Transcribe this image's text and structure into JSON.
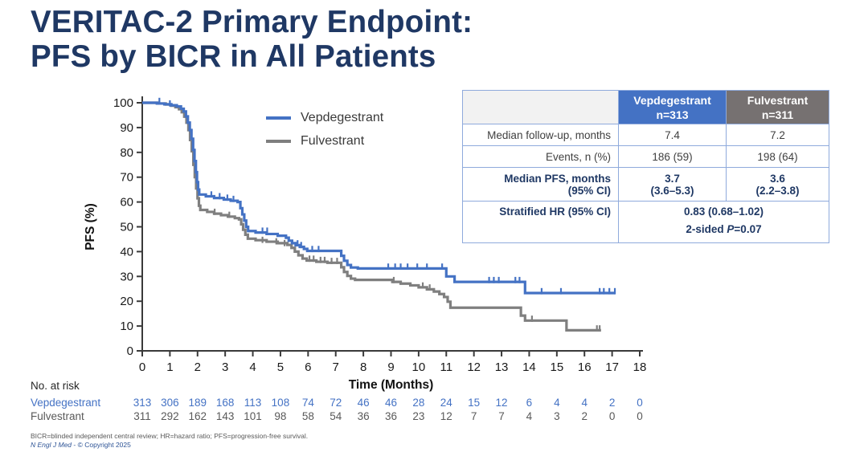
{
  "title": {
    "line1": "VERITAC-2 Primary Endpoint:",
    "line2": "PFS by BICR in All Patients"
  },
  "summary_table": {
    "headers": [
      {
        "name": "",
        "n": ""
      },
      {
        "name": "Vepdegestrant",
        "n": "n=313",
        "bg": "#4472C4"
      },
      {
        "name": "Fulvestrant",
        "n": "n=311",
        "bg": "#767171"
      }
    ],
    "rows": [
      {
        "label": "Median follow-up, months",
        "values": [
          "7.4",
          "7.2"
        ]
      },
      {
        "label": "Events, n (%)",
        "values": [
          "186 (59)",
          "198 (64)"
        ]
      },
      {
        "label": "Median PFS, months\n(95% CI)",
        "values": [
          "3.7\n(3.6–5.3)",
          "3.6\n(2.2–3.8)"
        ]
      }
    ],
    "hr_row": {
      "label": "Stratified HR (95% CI)",
      "value": "0.83 (0.68–1.02)",
      "p_prefix": "2-sided ",
      "p_symbol": "P",
      "p_value": "=0.07"
    }
  },
  "chart_data": {
    "type": "line",
    "subtype": "kaplan-meier",
    "title": "",
    "xlabel": "Time (Months)",
    "ylabel": "PFS (%)",
    "xlim": [
      0,
      18
    ],
    "ylim": [
      0,
      100
    ],
    "xticks": [
      0,
      1,
      2,
      3,
      4,
      5,
      6,
      7,
      8,
      9,
      10,
      11,
      12,
      13,
      14,
      15,
      16,
      17,
      18
    ],
    "yticks": [
      0,
      10,
      20,
      30,
      40,
      50,
      60,
      70,
      80,
      90,
      100
    ],
    "series": [
      {
        "name": "Fulvestrant",
        "color": "#7F7F7F",
        "end": 16.6,
        "points": [
          [
            0,
            100
          ],
          [
            0.6,
            99.7
          ],
          [
            0.85,
            99.3
          ],
          [
            1.05,
            98.8
          ],
          [
            1.2,
            98.2
          ],
          [
            1.33,
            97.4
          ],
          [
            1.43,
            96.2
          ],
          [
            1.52,
            94.4
          ],
          [
            1.6,
            92
          ],
          [
            1.67,
            89
          ],
          [
            1.73,
            85
          ],
          [
            1.79,
            80.5
          ],
          [
            1.85,
            75
          ],
          [
            1.9,
            70
          ],
          [
            1.95,
            65.5
          ],
          [
            2.0,
            61.5
          ],
          [
            2.05,
            58.5
          ],
          [
            2.1,
            56.8
          ],
          [
            2.35,
            56
          ],
          [
            2.6,
            55.3
          ],
          [
            2.85,
            54.7
          ],
          [
            3.1,
            54.1
          ],
          [
            3.35,
            53.5
          ],
          [
            3.5,
            53
          ],
          [
            3.58,
            51
          ],
          [
            3.65,
            48.8
          ],
          [
            3.73,
            46.8
          ],
          [
            3.82,
            45.2
          ],
          [
            4.1,
            44.6
          ],
          [
            4.5,
            44
          ],
          [
            4.9,
            43.4
          ],
          [
            5.25,
            42.7
          ],
          [
            5.4,
            41.5
          ],
          [
            5.52,
            40
          ],
          [
            5.65,
            38.5
          ],
          [
            5.8,
            37.2
          ],
          [
            5.95,
            36.4
          ],
          [
            6.3,
            35.9
          ],
          [
            6.7,
            35.5
          ],
          [
            7.2,
            33.7
          ],
          [
            7.3,
            31.8
          ],
          [
            7.42,
            30.2
          ],
          [
            7.55,
            29.1
          ],
          [
            7.7,
            28.6
          ],
          [
            9.05,
            27.8
          ],
          [
            9.35,
            27.1
          ],
          [
            9.7,
            26.4
          ],
          [
            10.0,
            25.6
          ],
          [
            10.3,
            24.8
          ],
          [
            10.55,
            23.9
          ],
          [
            10.75,
            22.9
          ],
          [
            10.92,
            21.7
          ],
          [
            11.05,
            19.8
          ],
          [
            11.15,
            17.4
          ],
          [
            13.7,
            14.2
          ],
          [
            13.85,
            12.2
          ],
          [
            15.35,
            8.3
          ]
        ],
        "censors": [
          [
            2.62,
            55.3
          ],
          [
            3.15,
            54.1
          ],
          [
            4.35,
            44
          ],
          [
            4.85,
            43.4
          ],
          [
            5.15,
            42.7
          ],
          [
            6.05,
            36.4
          ],
          [
            6.2,
            36.4
          ],
          [
            6.45,
            35.9
          ],
          [
            6.6,
            35.9
          ],
          [
            6.85,
            35.5
          ],
          [
            7.05,
            35.5
          ],
          [
            9.1,
            27.8
          ],
          [
            10.15,
            25.6
          ],
          [
            10.4,
            24.8
          ],
          [
            14.1,
            12.2
          ],
          [
            16.45,
            8.3
          ],
          [
            16.55,
            8.3
          ]
        ]
      },
      {
        "name": "Vepdegestrant",
        "color": "#4472C4",
        "end": 17.1,
        "points": [
          [
            0,
            100
          ],
          [
            0.53,
            99.7
          ],
          [
            0.8,
            99.4
          ],
          [
            1.05,
            99
          ],
          [
            1.25,
            98.5
          ],
          [
            1.4,
            97.6
          ],
          [
            1.5,
            96.5
          ],
          [
            1.58,
            94.5
          ],
          [
            1.65,
            92
          ],
          [
            1.72,
            89
          ],
          [
            1.78,
            85.5
          ],
          [
            1.84,
            81
          ],
          [
            1.89,
            76.5
          ],
          [
            1.94,
            72
          ],
          [
            1.98,
            68
          ],
          [
            2.02,
            65
          ],
          [
            2.06,
            63
          ],
          [
            2.3,
            62.3
          ],
          [
            2.6,
            61.6
          ],
          [
            2.95,
            61
          ],
          [
            3.2,
            60.5
          ],
          [
            3.45,
            60
          ],
          [
            3.55,
            57.5
          ],
          [
            3.62,
            55
          ],
          [
            3.69,
            52.5
          ],
          [
            3.76,
            50
          ],
          [
            3.83,
            48.3
          ],
          [
            4.1,
            47.7
          ],
          [
            4.5,
            47.1
          ],
          [
            4.9,
            46.4
          ],
          [
            5.2,
            45.6
          ],
          [
            5.3,
            44.4
          ],
          [
            5.42,
            43.4
          ],
          [
            5.55,
            42.6
          ],
          [
            5.7,
            41.9
          ],
          [
            5.85,
            41.1
          ],
          [
            5.97,
            40.3
          ],
          [
            7.2,
            38.3
          ],
          [
            7.3,
            36.3
          ],
          [
            7.42,
            34.6
          ],
          [
            7.55,
            33.6
          ],
          [
            7.8,
            33.2
          ],
          [
            11.0,
            30
          ],
          [
            11.3,
            27.8
          ],
          [
            13.85,
            23.3
          ]
        ],
        "censors": [
          [
            0.62,
            100
          ],
          [
            1.0,
            99
          ],
          [
            2.5,
            62.3
          ],
          [
            2.8,
            61.6
          ],
          [
            3.08,
            61
          ],
          [
            3.3,
            60.5
          ],
          [
            4.35,
            47.7
          ],
          [
            4.52,
            47.7
          ],
          [
            5.62,
            42.6
          ],
          [
            5.75,
            41.9
          ],
          [
            6.15,
            40.3
          ],
          [
            6.38,
            40.3
          ],
          [
            8.9,
            33.2
          ],
          [
            9.15,
            33.2
          ],
          [
            9.35,
            33.2
          ],
          [
            9.6,
            33.2
          ],
          [
            9.95,
            33.2
          ],
          [
            10.3,
            33.2
          ],
          [
            10.85,
            33.2
          ],
          [
            12.55,
            27.8
          ],
          [
            12.72,
            27.8
          ],
          [
            12.9,
            27.8
          ],
          [
            13.5,
            27.8
          ],
          [
            13.65,
            27.8
          ],
          [
            14.45,
            23.3
          ],
          [
            15.15,
            23.3
          ],
          [
            16.55,
            23.3
          ],
          [
            16.7,
            23.3
          ],
          [
            16.9,
            23.3
          ],
          [
            17.1,
            23.3
          ]
        ]
      }
    ],
    "no_at_risk": {
      "label": "No. at risk",
      "timepoints": [
        0,
        1,
        2,
        3,
        4,
        5,
        6,
        7,
        8,
        9,
        10,
        11,
        12,
        13,
        14,
        15,
        16,
        17,
        18
      ],
      "series": [
        {
          "name": "Vepdegestrant",
          "text_color": "#4472C4",
          "values": [
            313,
            306,
            189,
            168,
            113,
            108,
            74,
            72,
            46,
            46,
            28,
            24,
            15,
            12,
            6,
            4,
            4,
            2,
            0
          ]
        },
        {
          "name": "Fulvestrant",
          "text_color": "#595959",
          "values": [
            311,
            292,
            162,
            143,
            101,
            98,
            58,
            54,
            36,
            36,
            23,
            12,
            7,
            7,
            4,
            3,
            2,
            0,
            0
          ]
        }
      ]
    }
  },
  "footnotes": {
    "line1": "BICR=blinded independent central review; HR=hazard ratio; PFS=progression-free survival.",
    "line2_italic": "N Engl J Med",
    "line2_rest": " - © Copyright 2025"
  }
}
